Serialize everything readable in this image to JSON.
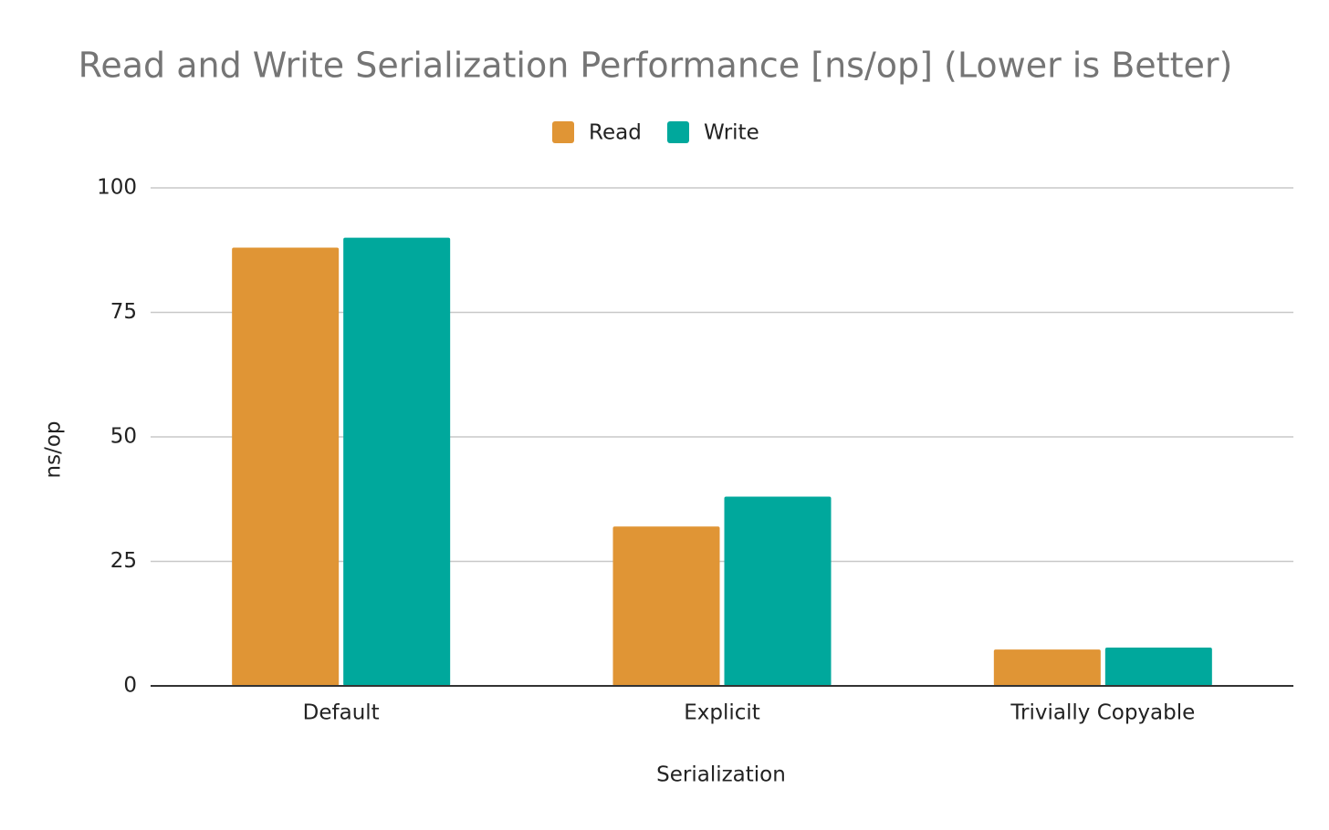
{
  "chart_data": {
    "type": "bar",
    "title": "Read and Write Serialization Performance [ns/op] (Lower is Better)",
    "x_label": "Serialization",
    "y_label": "ns/op",
    "categories": [
      "Default",
      "Explicit",
      "Trivially Copyable"
    ],
    "series": [
      {
        "name": "Read",
        "color": "#e09535",
        "values": [
          88,
          32,
          7.3
        ]
      },
      {
        "name": "Write",
        "color": "#00a89c",
        "values": [
          90,
          38,
          7.7
        ]
      }
    ],
    "ylim": [
      0,
      100
    ],
    "yticks": [
      0,
      25,
      50,
      75,
      100
    ],
    "grid": true,
    "legend": "top"
  }
}
